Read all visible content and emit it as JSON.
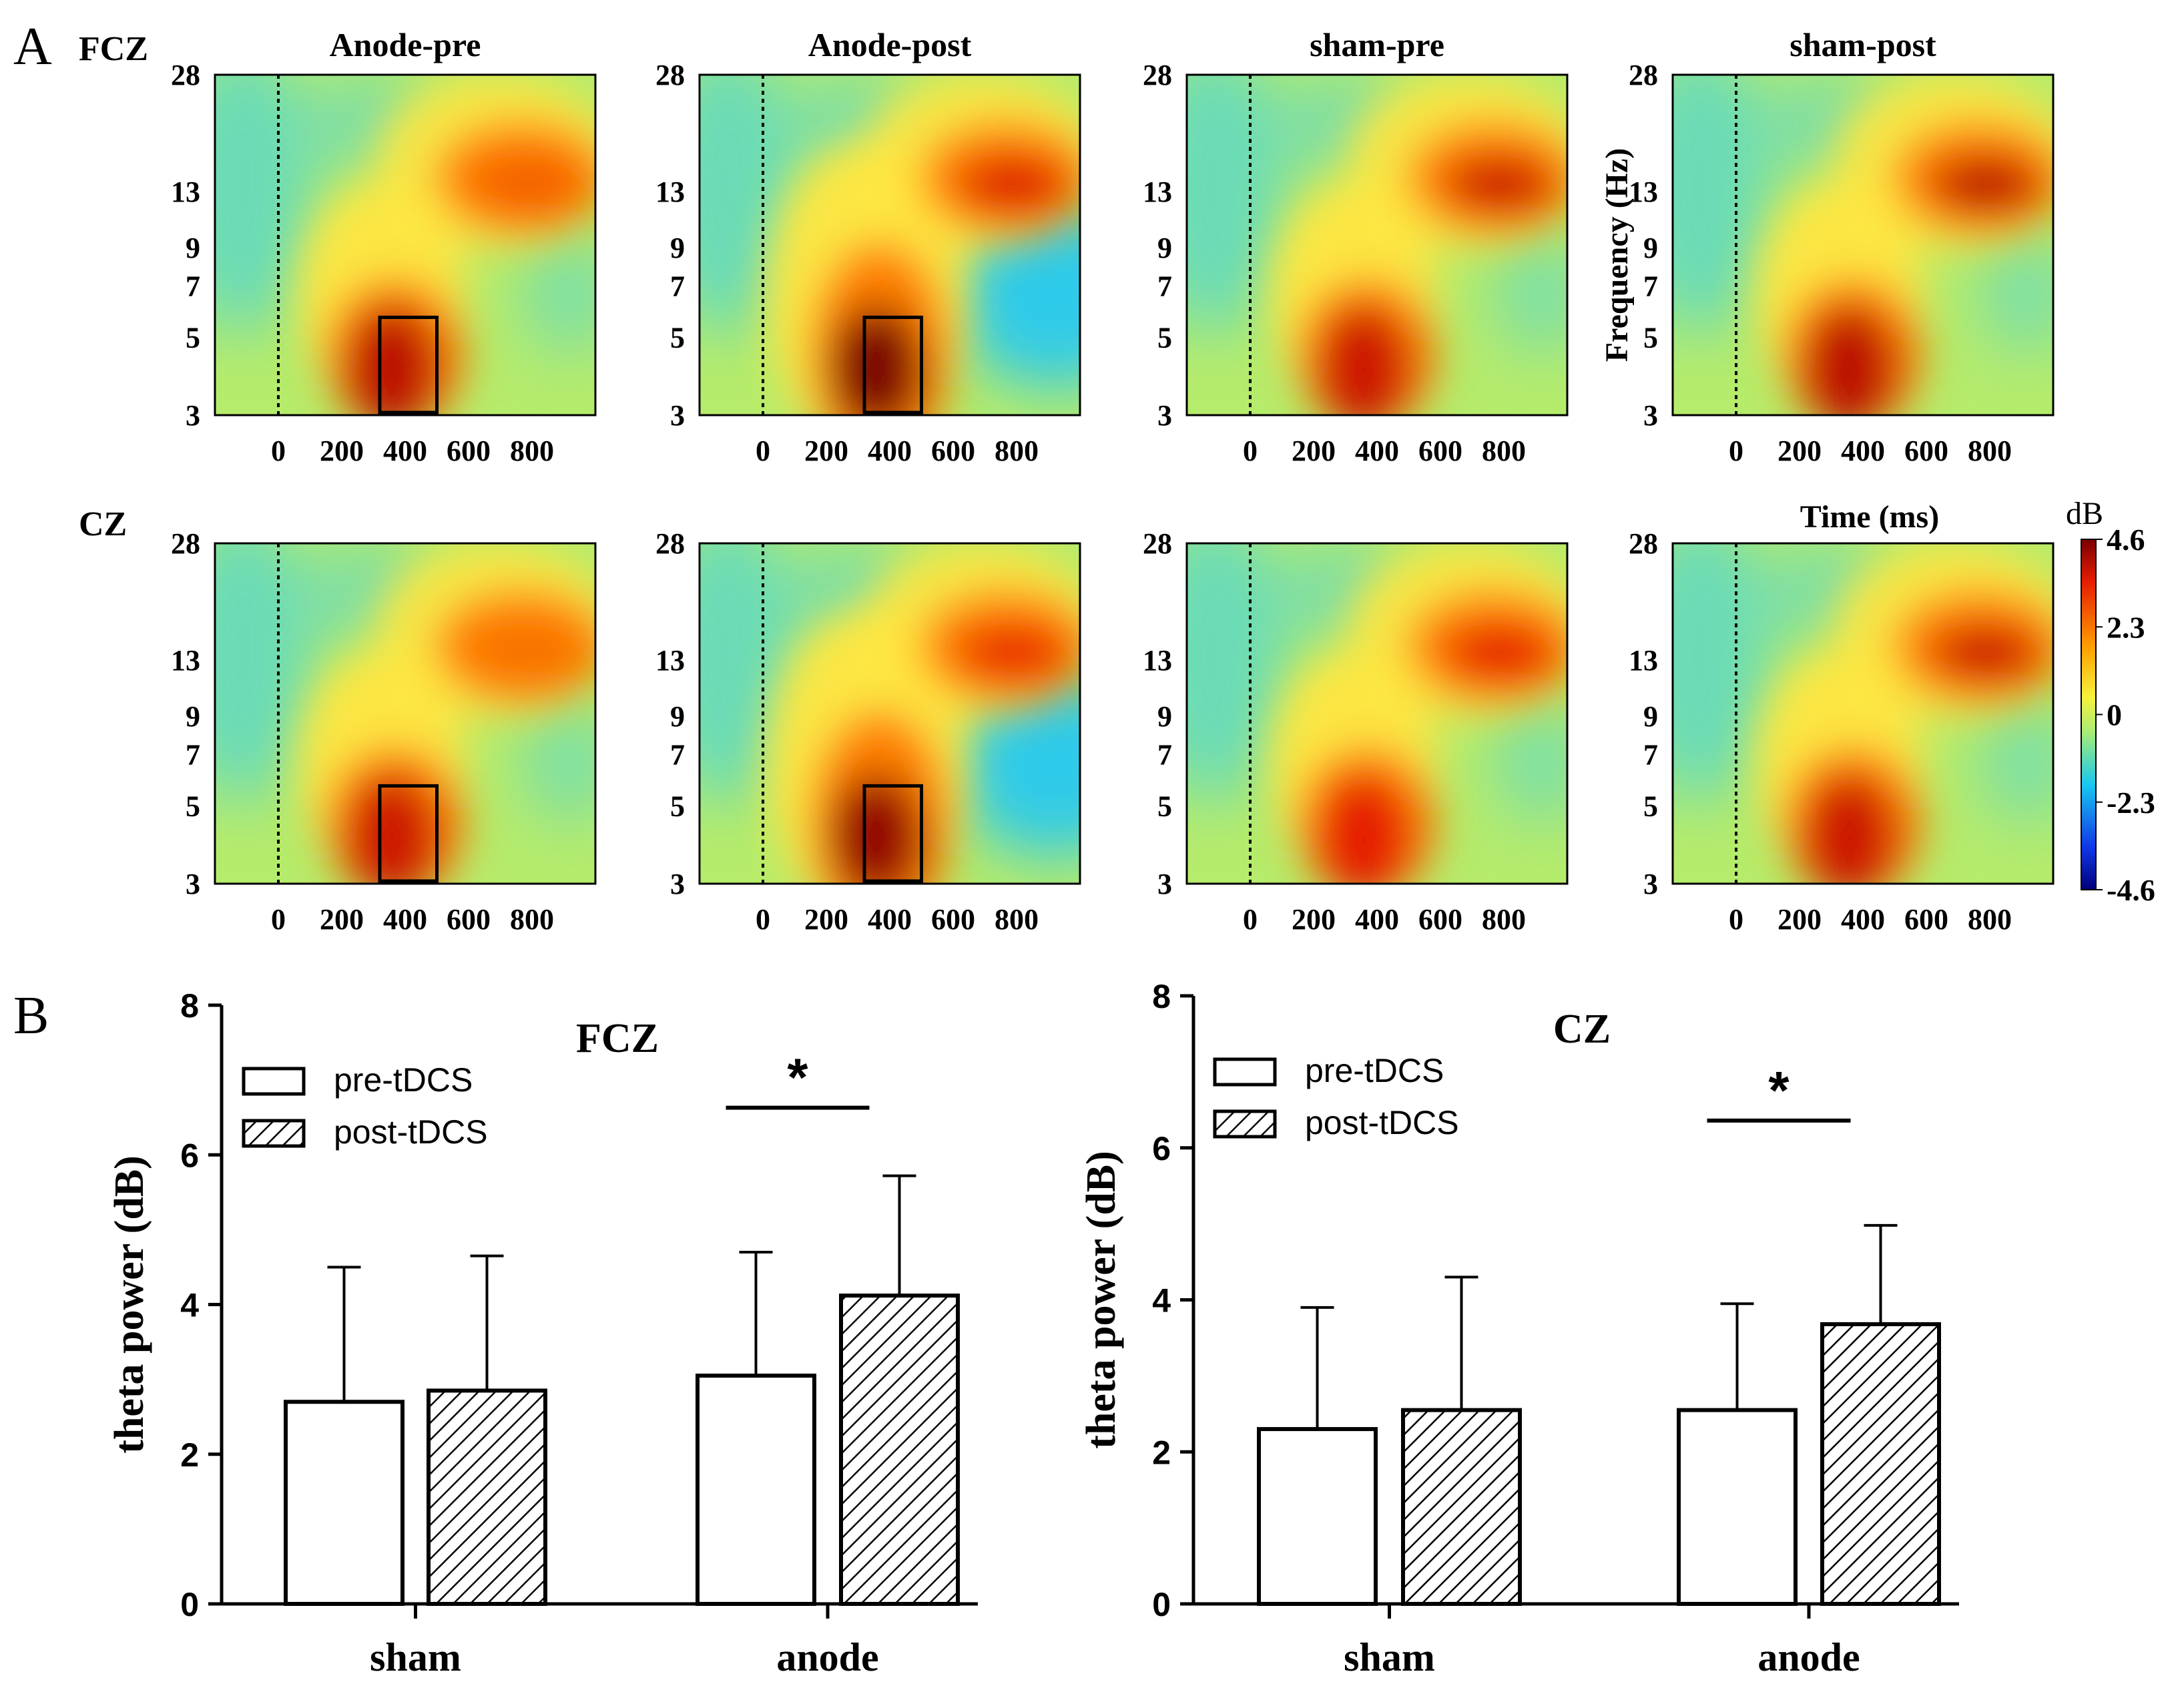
{
  "figure": {
    "panel_a_letter": "A",
    "panel_b_letter": "B",
    "colorbar": {
      "unit": "dB",
      "ticks": [
        "4.6",
        "2.3",
        "0",
        "-2.3",
        "-4.6"
      ],
      "min": -4.6,
      "max": 4.6
    },
    "tf_y_axis_label": "Frequency (Hz)",
    "tf_x_axis_label": "Time (ms)"
  },
  "chart_data": [
    {
      "type": "heatmap",
      "id": "time-frequency-maps",
      "rows": [
        "FCZ",
        "CZ"
      ],
      "columns": [
        "Anode-pre",
        "Anode-post",
        "sham-pre",
        "sham-post"
      ],
      "y_ticks": [
        "28",
        "13",
        "9",
        "7",
        "5",
        "3"
      ],
      "y_tick_values": [
        28,
        13,
        9,
        7,
        5,
        3
      ],
      "x_ticks": [
        "0",
        "200",
        "400",
        "600",
        "800"
      ],
      "x_tick_values": [
        0,
        200,
        400,
        600,
        800
      ],
      "x_range_ms": [
        -200,
        1000
      ],
      "y_range_hz": [
        3,
        28
      ],
      "stimulus_onset_ms": 0,
      "theta_window": {
        "time_ms": [
          320,
          500
        ],
        "freq_hz": [
          3,
          5.7
        ],
        "shown_in": [
          "Anode-pre",
          "Anode-post"
        ]
      },
      "peak_theta_db": {
        "FCZ": {
          "Anode-pre": 3.8,
          "Anode-post": 4.6,
          "sham-pre": 3.6,
          "sham-post": 3.8
        },
        "CZ": {
          "Anode-pre": 3.6,
          "Anode-post": 4.3,
          "sham-pre": 3.3,
          "sham-post": 3.6
        }
      }
    },
    {
      "type": "bar",
      "title": "FCZ",
      "categories": [
        "sham",
        "anode"
      ],
      "series": [
        {
          "name": "pre-tDCS",
          "values": [
            2.7,
            3.05
          ],
          "sd": [
            1.8,
            1.65
          ]
        },
        {
          "name": "post-tDCS",
          "values": [
            2.85,
            4.12
          ],
          "sd": [
            1.8,
            1.6
          ]
        }
      ],
      "ylabel": "theta power (dB)",
      "ylim": [
        0,
        8
      ],
      "yticks": [
        "0",
        "2",
        "4",
        "6",
        "8"
      ],
      "significance": {
        "category": "anode",
        "mark": "*"
      }
    },
    {
      "type": "bar",
      "title": "CZ",
      "categories": [
        "sham",
        "anode"
      ],
      "series": [
        {
          "name": "pre-tDCS",
          "values": [
            2.3,
            2.55
          ],
          "sd": [
            1.6,
            1.4
          ]
        },
        {
          "name": "post-tDCS",
          "values": [
            2.55,
            3.68
          ],
          "sd": [
            1.75,
            1.3
          ]
        }
      ],
      "ylabel": "theta power (dB)",
      "ylim": [
        0,
        8
      ],
      "yticks": [
        "0",
        "2",
        "4",
        "6",
        "8"
      ],
      "significance": {
        "category": "anode",
        "mark": "*"
      }
    }
  ]
}
